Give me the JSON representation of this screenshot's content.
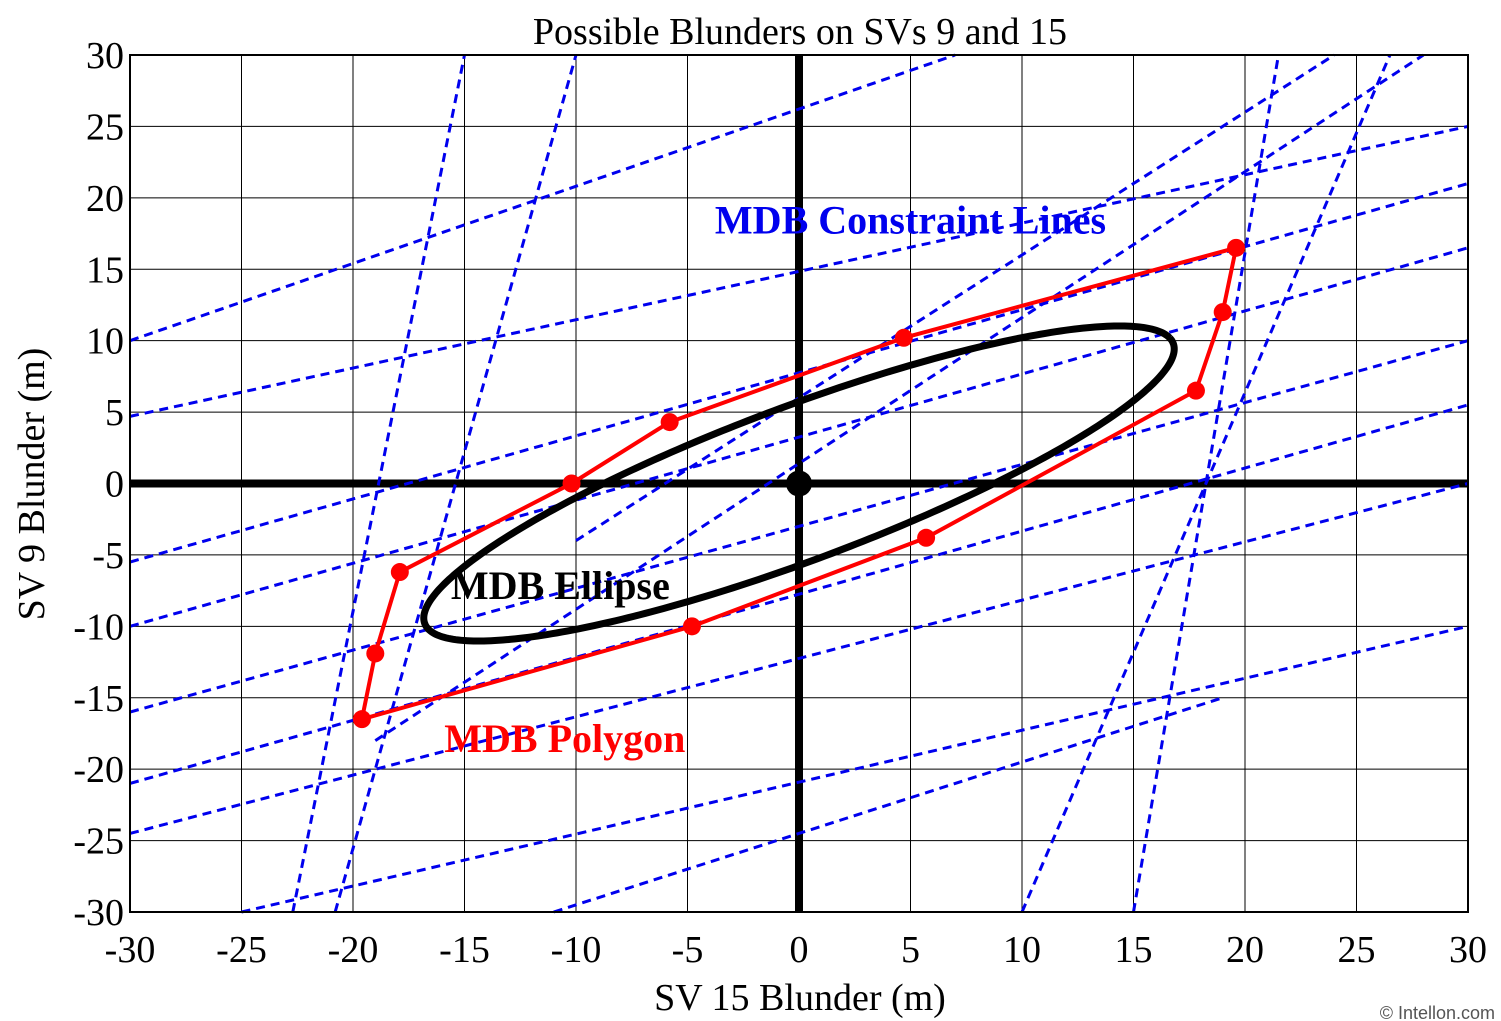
{
  "chart_data": {
    "type": "line",
    "title": "Possible Blunders on SVs 9 and 15",
    "xlabel": "SV 15 Blunder (m)",
    "ylabel": "SV 9 Blunder (m)",
    "xlim": [
      -30,
      30
    ],
    "ylim": [
      -30,
      30
    ],
    "xticks": [
      -30,
      -25,
      -20,
      -15,
      -10,
      -5,
      0,
      5,
      10,
      15,
      20,
      25,
      30
    ],
    "yticks": [
      -30,
      -25,
      -20,
      -15,
      -10,
      -5,
      0,
      5,
      10,
      15,
      20,
      25,
      30
    ],
    "grid": true,
    "annotations": [
      {
        "text": "MDB Constraint Lines",
        "color": "#0000ee",
        "x": 5,
        "y": 17.5
      },
      {
        "text": "MDB Ellipse",
        "color": "#000000",
        "x": -10.7,
        "y": -8.1
      },
      {
        "text": "MDB Polygon",
        "color": "#ff0000",
        "x": -10.5,
        "y": -18.8
      }
    ],
    "credit": "© Intellon.com",
    "ellipse": {
      "center": [
        0,
        0
      ],
      "semi_major": 19.5,
      "semi_minor": 4.95,
      "angle_deg": 31.5,
      "color": "#000000"
    },
    "polygon": {
      "color": "#ff0000",
      "points": [
        [
          19.6,
          16.5
        ],
        [
          19.0,
          12.0
        ],
        [
          17.8,
          6.5
        ],
        [
          5.7,
          -3.8
        ],
        [
          -4.8,
          -10.0
        ],
        [
          -19.6,
          -16.5
        ],
        [
          -19.0,
          -11.9
        ],
        [
          -17.9,
          -6.2
        ],
        [
          -10.2,
          0.0
        ],
        [
          -5.8,
          4.3
        ],
        [
          4.7,
          10.2
        ]
      ]
    },
    "constraint_lines": {
      "color": "#0000ee",
      "segments": [
        [
          [
            -30,
            10
          ],
          [
            7,
            30
          ]
        ],
        [
          [
            -30,
            4.7
          ],
          [
            30,
            25
          ]
        ],
        [
          [
            -30,
            -5.5
          ],
          [
            30,
            21
          ]
        ],
        [
          [
            -30,
            -10
          ],
          [
            30,
            16.5
          ]
        ],
        [
          [
            -30,
            -16
          ],
          [
            30,
            10
          ]
        ],
        [
          [
            -30,
            -21
          ],
          [
            30,
            5.5
          ]
        ],
        [
          [
            -30,
            -24.5
          ],
          [
            30,
            0
          ]
        ],
        [
          [
            -25,
            -30
          ],
          [
            30,
            -10
          ]
        ],
        [
          [
            -11,
            -30
          ],
          [
            19,
            -15
          ]
        ],
        [
          [
            -22.7,
            -30
          ],
          [
            -15,
            30
          ]
        ],
        [
          [
            -20.8,
            -30
          ],
          [
            -10,
            30
          ]
        ],
        [
          [
            -19,
            -18
          ],
          [
            28,
            30
          ]
        ],
        [
          [
            -10,
            -4
          ],
          [
            24,
            30
          ]
        ],
        [
          [
            15,
            -30
          ],
          [
            21.5,
            30
          ]
        ],
        [
          [
            10,
            -30
          ],
          [
            26.5,
            30
          ]
        ]
      ]
    },
    "origin_marker": [
      0,
      0
    ]
  }
}
